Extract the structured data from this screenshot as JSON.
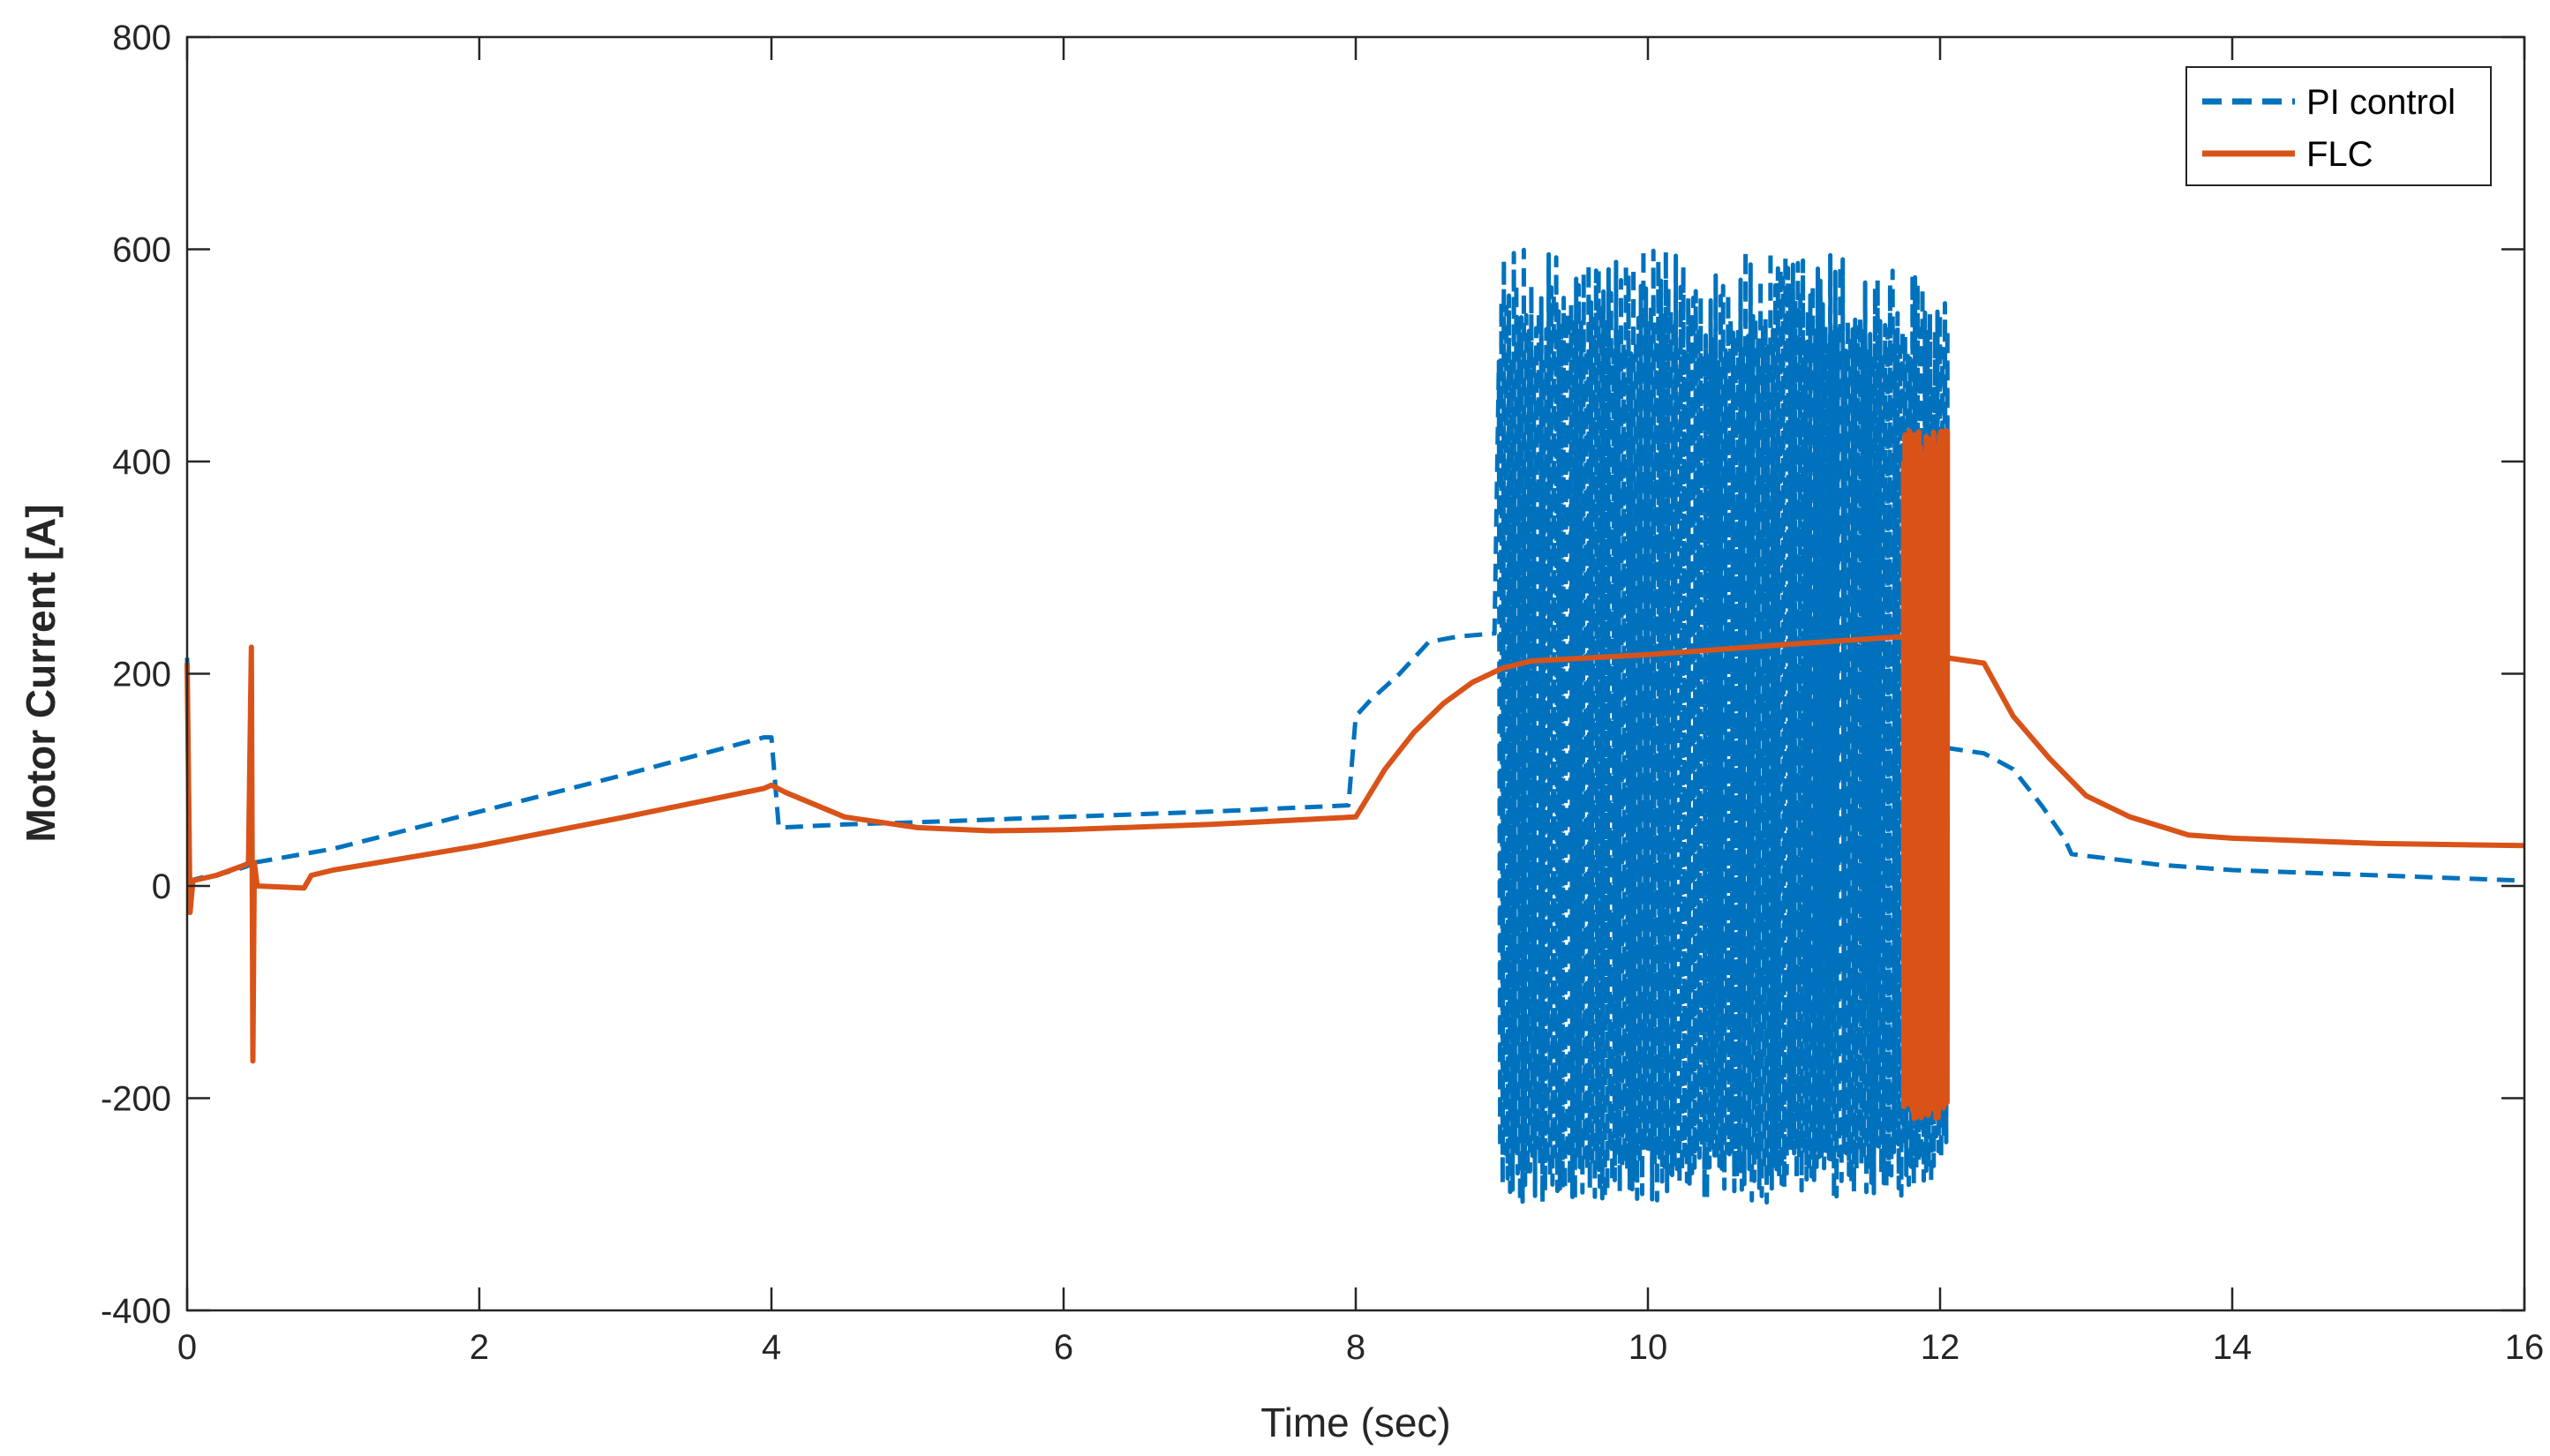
{
  "chart_data": {
    "type": "line",
    "title": "",
    "xlabel": "Time (sec)",
    "ylabel": "Motor Current [A]",
    "xlim": [
      0,
      16
    ],
    "ylim": [
      -400,
      800
    ],
    "xticks": [
      0,
      2,
      4,
      6,
      8,
      10,
      12,
      14,
      16
    ],
    "yticks": [
      -400,
      -200,
      0,
      200,
      400,
      600,
      800
    ],
    "xtick_labels": [
      "0",
      "2",
      "4",
      "6",
      "8",
      "10",
      "12",
      "14",
      "16"
    ],
    "ytick_labels": [
      "-400",
      "-200",
      "0",
      "200",
      "400",
      "600",
      "800"
    ],
    "grid": false,
    "legend": {
      "position": "top-right",
      "entries": [
        "PI control",
        "FLC"
      ]
    },
    "series": [
      {
        "name": "PI control",
        "color": "#0072BD",
        "style": "dashed",
        "points": [
          [
            0,
            215
          ],
          [
            0.02,
            5
          ],
          [
            0.1,
            8
          ],
          [
            0.2,
            10
          ],
          [
            0.4,
            18
          ],
          [
            0.43,
            20
          ],
          [
            0.44,
            220
          ],
          [
            0.45,
            -160
          ],
          [
            0.46,
            22
          ],
          [
            1,
            35
          ],
          [
            2,
            70
          ],
          [
            3,
            105
          ],
          [
            3.95,
            140
          ],
          [
            4.0,
            140
          ],
          [
            4.05,
            55
          ],
          [
            4.5,
            58
          ],
          [
            5,
            60
          ],
          [
            6,
            65
          ],
          [
            7,
            70
          ],
          [
            7.95,
            76
          ],
          [
            8.0,
            160
          ],
          [
            8.1,
            175
          ],
          [
            8.3,
            200
          ],
          [
            8.5,
            230
          ],
          [
            8.7,
            235
          ],
          [
            8.95,
            238
          ],
          [
            11.75,
            235
          ],
          [
            12.0,
            180
          ],
          [
            12.05,
            130
          ],
          [
            12.3,
            125
          ],
          [
            12.5,
            110
          ],
          [
            12.7,
            75
          ],
          [
            12.85,
            45
          ],
          [
            12.9,
            30
          ],
          [
            13.2,
            25
          ],
          [
            13.5,
            20
          ],
          [
            14,
            15
          ],
          [
            15,
            10
          ],
          [
            16,
            5
          ]
        ],
        "oscillation": {
          "t_start": 8.98,
          "t_end": 12.05,
          "max": 600,
          "min": -300
        }
      },
      {
        "name": "FLC",
        "color": "#D95319",
        "style": "solid",
        "points": [
          [
            0,
            210
          ],
          [
            0.02,
            -25
          ],
          [
            0.04,
            5
          ],
          [
            0.2,
            10
          ],
          [
            0.4,
            20
          ],
          [
            0.42,
            22
          ],
          [
            0.44,
            225
          ],
          [
            0.45,
            -165
          ],
          [
            0.46,
            22
          ],
          [
            0.48,
            0
          ],
          [
            0.8,
            -2
          ],
          [
            0.85,
            10
          ],
          [
            1,
            15
          ],
          [
            2,
            38
          ],
          [
            3,
            65
          ],
          [
            3.95,
            92
          ],
          [
            4.0,
            95
          ],
          [
            4.1,
            88
          ],
          [
            4.5,
            65
          ],
          [
            5,
            55
          ],
          [
            5.5,
            52
          ],
          [
            6,
            53
          ],
          [
            7,
            58
          ],
          [
            8,
            65
          ],
          [
            8.2,
            110
          ],
          [
            8.4,
            145
          ],
          [
            8.6,
            172
          ],
          [
            8.8,
            192
          ],
          [
            9.0,
            205
          ],
          [
            9.2,
            212
          ],
          [
            10,
            218
          ],
          [
            11,
            228
          ],
          [
            11.75,
            235
          ],
          [
            12.05,
            215
          ],
          [
            12.3,
            210
          ],
          [
            12.5,
            160
          ],
          [
            12.75,
            120
          ],
          [
            13,
            85
          ],
          [
            13.3,
            65
          ],
          [
            13.7,
            48
          ],
          [
            14,
            45
          ],
          [
            15,
            40
          ],
          [
            16,
            38
          ]
        ],
        "oscillation": {
          "t_start": 11.75,
          "t_end": 12.05,
          "max": 430,
          "min": -220
        }
      }
    ]
  }
}
